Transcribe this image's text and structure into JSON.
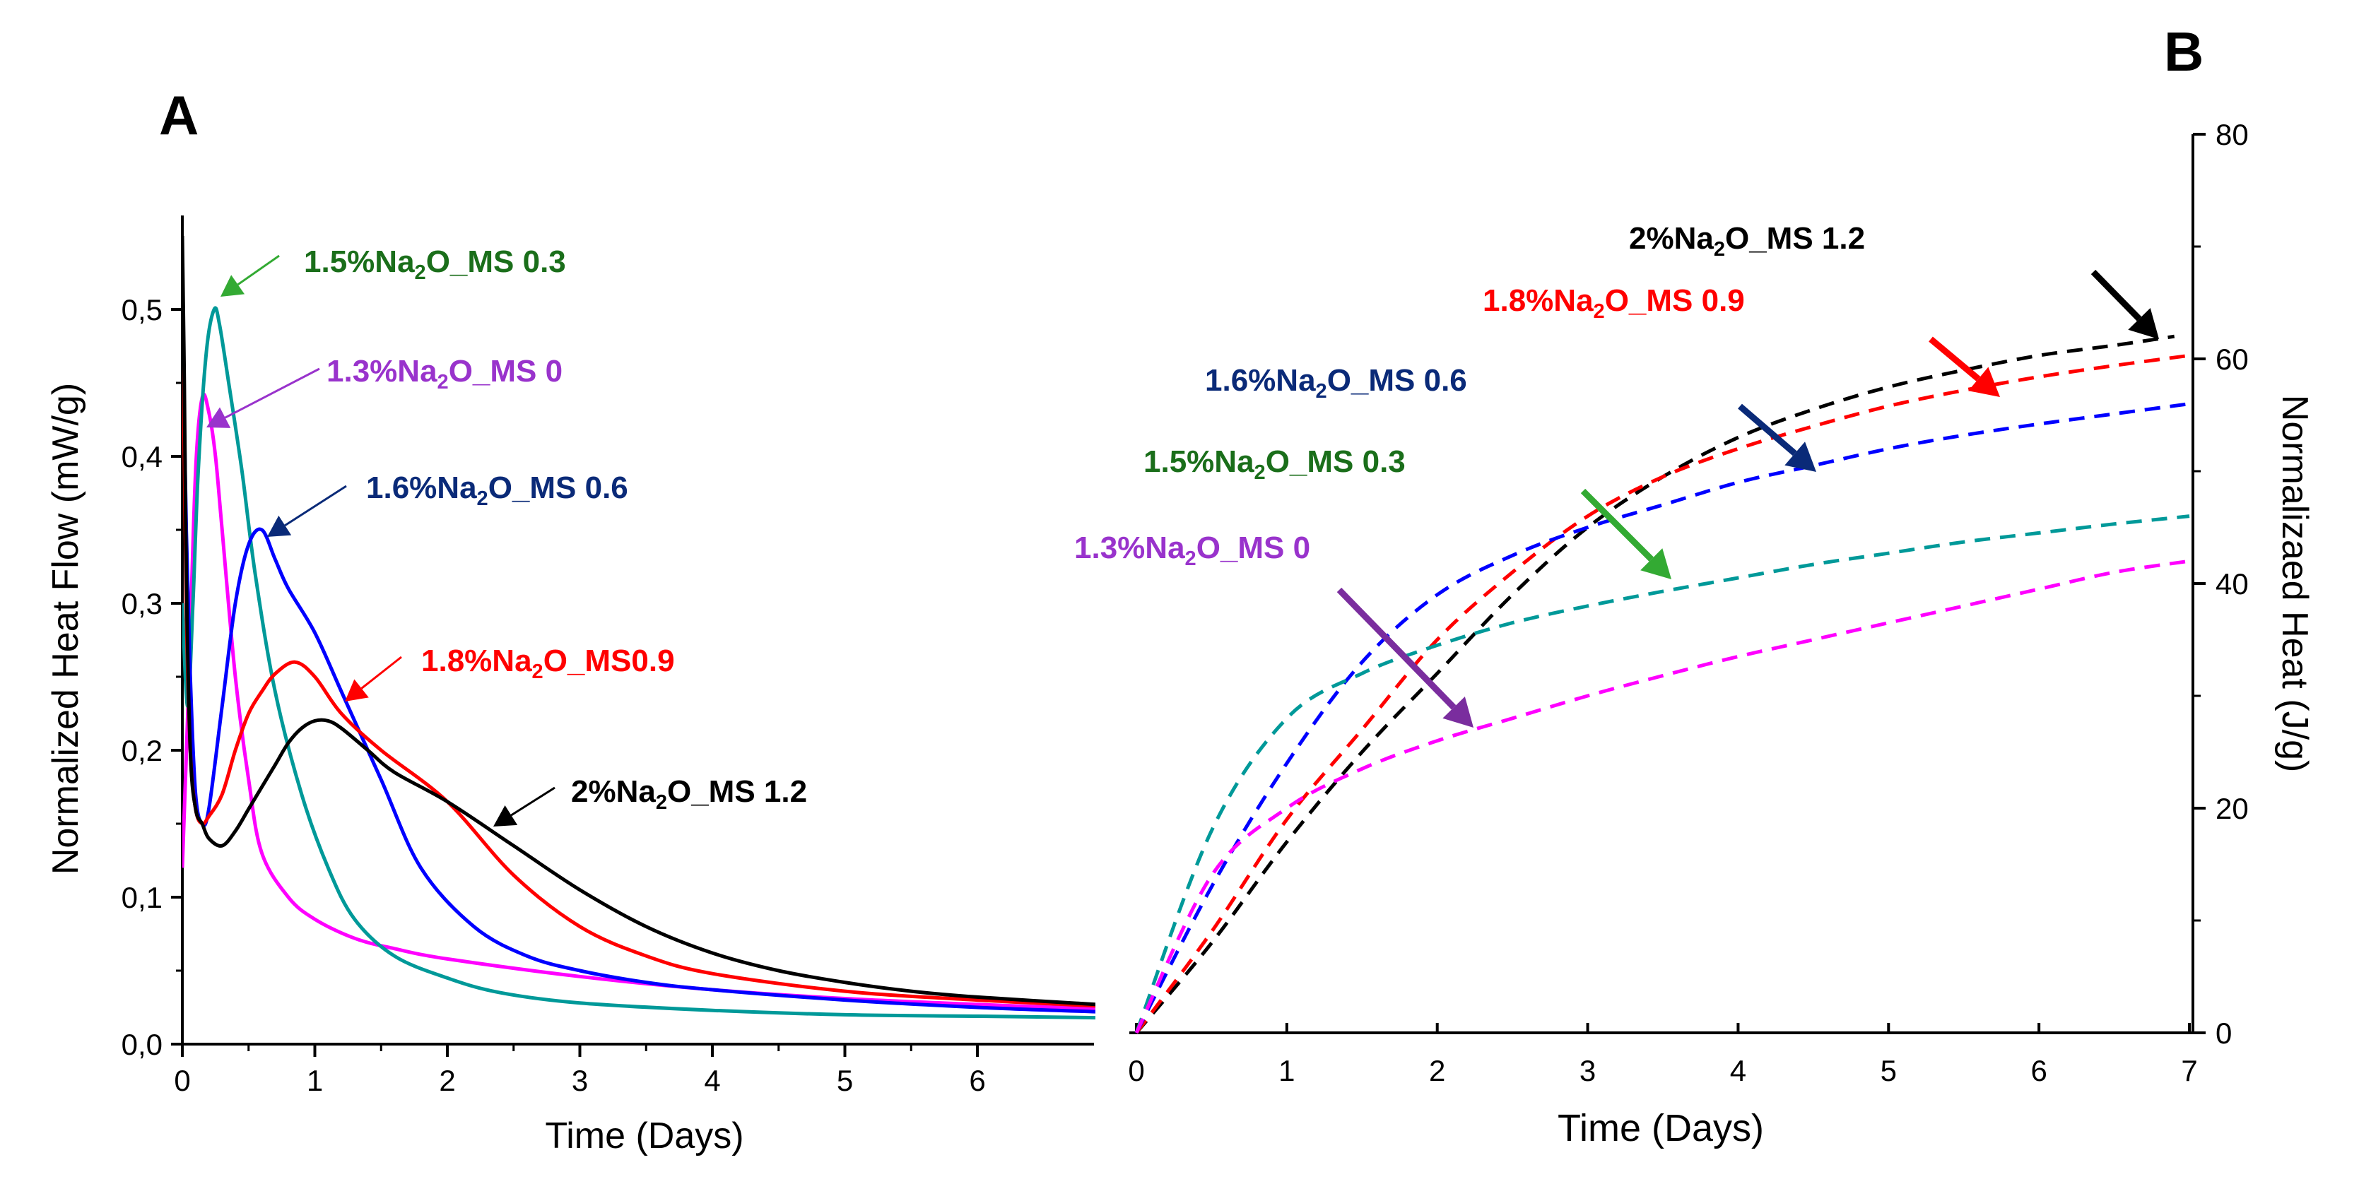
{
  "panel_labels": {
    "a": "A",
    "b": "B"
  },
  "chart_data": [
    {
      "type": "line",
      "panel": "A",
      "xlabel": "Time (Days)",
      "ylabel": "Normalized Heat Flow (mW/g)",
      "xlim": [
        0,
        6.9
      ],
      "ylim": [
        0,
        0.55
      ],
      "xticks": [
        0,
        1,
        2,
        3,
        4,
        5,
        6
      ],
      "yticks": [
        0.0,
        0.1,
        0.2,
        0.3,
        0.4,
        0.5
      ],
      "yticklabels": [
        "0,0",
        "0,1",
        "0,2",
        "0,3",
        "0,4",
        "0,5"
      ],
      "series": [
        {
          "name": "1.3%Na2O_MS 0",
          "color": "#ff00ff",
          "x": [
            0,
            0.05,
            0.1,
            0.15,
            0.2,
            0.25,
            0.3,
            0.4,
            0.5,
            0.6,
            0.8,
            1.0,
            1.3,
            1.6,
            2,
            3,
            4,
            5,
            6,
            6.9
          ],
          "y": [
            0.12,
            0.25,
            0.39,
            0.44,
            0.43,
            0.4,
            0.35,
            0.25,
            0.18,
            0.13,
            0.1,
            0.085,
            0.072,
            0.065,
            0.058,
            0.046,
            0.037,
            0.031,
            0.027,
            0.024
          ]
        },
        {
          "name": "1.5%Na2O_MS 0.3",
          "color": "#009999",
          "x": [
            0,
            0.04,
            0.08,
            0.12,
            0.18,
            0.24,
            0.28,
            0.35,
            0.45,
            0.55,
            0.7,
            0.9,
            1.1,
            1.3,
            1.6,
            2,
            2.4,
            3,
            4,
            5,
            6,
            6.9
          ],
          "y": [
            0.3,
            0.23,
            0.3,
            0.39,
            0.47,
            0.5,
            0.49,
            0.45,
            0.39,
            0.32,
            0.24,
            0.17,
            0.12,
            0.085,
            0.06,
            0.045,
            0.035,
            0.028,
            0.023,
            0.02,
            0.019,
            0.018
          ]
        },
        {
          "name": "1.6%Na2O_MS 0.6",
          "color": "#0000ff",
          "x": [
            0,
            0.03,
            0.06,
            0.1,
            0.15,
            0.2,
            0.3,
            0.4,
            0.5,
            0.6,
            0.7,
            0.8,
            1.0,
            1.2,
            1.5,
            1.8,
            2.2,
            2.6,
            3,
            3.5,
            4,
            5,
            6,
            6.9
          ],
          "y": [
            0.5,
            0.35,
            0.25,
            0.17,
            0.15,
            0.16,
            0.23,
            0.3,
            0.34,
            0.35,
            0.33,
            0.31,
            0.28,
            0.24,
            0.18,
            0.12,
            0.08,
            0.06,
            0.05,
            0.042,
            0.037,
            0.03,
            0.025,
            0.022
          ]
        },
        {
          "name": "1.8%Na2O_MS0.9",
          "color": "#ff0000",
          "x": [
            0,
            0.03,
            0.06,
            0.1,
            0.15,
            0.2,
            0.3,
            0.4,
            0.5,
            0.6,
            0.7,
            0.85,
            1.0,
            1.2,
            1.5,
            2.0,
            2.5,
            3.0,
            3.5,
            4,
            5,
            6,
            6.9
          ],
          "y": [
            0.52,
            0.3,
            0.2,
            0.16,
            0.15,
            0.155,
            0.17,
            0.2,
            0.225,
            0.24,
            0.252,
            0.26,
            0.25,
            0.225,
            0.2,
            0.165,
            0.115,
            0.08,
            0.06,
            0.048,
            0.036,
            0.03,
            0.026
          ]
        },
        {
          "name": "2%Na2O_MS 1.2",
          "color": "#000000",
          "x": [
            0,
            0.015,
            0.03,
            0.06,
            0.1,
            0.15,
            0.2,
            0.3,
            0.4,
            0.5,
            0.6,
            0.7,
            0.8,
            0.9,
            1.0,
            1.1,
            1.2,
            1.4,
            1.6,
            2.0,
            2.5,
            3.0,
            3.5,
            4,
            4.5,
            5,
            5.5,
            6,
            6.9
          ],
          "y": [
            0.55,
            0.45,
            0.32,
            0.2,
            0.16,
            0.15,
            0.14,
            0.135,
            0.145,
            0.16,
            0.175,
            0.19,
            0.205,
            0.215,
            0.22,
            0.22,
            0.215,
            0.2,
            0.185,
            0.165,
            0.135,
            0.105,
            0.08,
            0.062,
            0.05,
            0.042,
            0.036,
            0.032,
            0.027
          ]
        }
      ],
      "annotations": [
        {
          "text_pre": "1.5%Na",
          "sub": "2",
          "text_post": "O_MS  0.3",
          "color": "#1a6e1a",
          "arrow_color": "#33aa33"
        },
        {
          "text_pre": "1.3%Na",
          "sub": "2",
          "text_post": "O_MS  0",
          "color": "#9933cc",
          "arrow_color": "#9933cc"
        },
        {
          "text_pre": "1.6%Na",
          "sub": "2",
          "text_post": "O_MS  0.6",
          "color": "#0a2a78",
          "arrow_color": "#0a2a78"
        },
        {
          "text_pre": "1.8%Na",
          "sub": "2",
          "text_post": "O_MS0.9",
          "color": "#ff0000",
          "arrow_color": "#ff0000"
        },
        {
          "text_pre": "2%Na",
          "sub": "2",
          "text_post": "O_MS  1.2",
          "color": "#000000",
          "arrow_color": "#000000"
        }
      ]
    },
    {
      "type": "line",
      "panel": "B",
      "xlabel": "Time (Days)",
      "ylabel": "Normalizaed Heat (J/g)",
      "xlim": [
        0,
        7
      ],
      "ylim": [
        0,
        80
      ],
      "xticks": [
        0,
        1,
        2,
        3,
        4,
        5,
        6,
        7
      ],
      "yticks": [
        0,
        20,
        40,
        60,
        80
      ],
      "line_style": "dashed",
      "series": [
        {
          "name": "2%Na2O_MS 1.2",
          "color": "#000000",
          "x": [
            0,
            0.5,
            1,
            1.5,
            2,
            2.5,
            3,
            3.5,
            4,
            4.5,
            5,
            5.5,
            6,
            6.5,
            6.9
          ],
          "y": [
            0,
            8,
            17,
            25,
            32,
            39,
            45,
            49.5,
            53,
            55.5,
            57.5,
            59,
            60.3,
            61.2,
            62
          ]
        },
        {
          "name": "1.8%Na2O_MS 0.9",
          "color": "#ff0000",
          "x": [
            0,
            0.5,
            1,
            1.5,
            2,
            2.5,
            3,
            3.5,
            4,
            4.5,
            5,
            5.5,
            6,
            6.5,
            7
          ],
          "y": [
            0,
            9,
            19,
            27,
            35,
            41,
            46,
            49.5,
            52,
            54,
            55.8,
            57.2,
            58.4,
            59.4,
            60.3
          ]
        },
        {
          "name": "1.6%Na2O_MS 0.6",
          "color": "#0000ff",
          "x": [
            0,
            0.5,
            1,
            1.5,
            2,
            2.5,
            3,
            3.5,
            4,
            4.5,
            5,
            5.5,
            6,
            6.5,
            7
          ],
          "y": [
            0,
            13,
            24,
            33,
            39,
            42.5,
            45,
            47,
            49,
            50.5,
            52,
            53.2,
            54.2,
            55.1,
            56
          ]
        },
        {
          "name": "1.5%Na2O_MS 0.3",
          "color": "#009999",
          "x": [
            0,
            0.5,
            1,
            1.5,
            2,
            2.5,
            3,
            3.5,
            4,
            4.5,
            5,
            5.5,
            6,
            6.5,
            7
          ],
          "y": [
            0,
            18,
            28,
            32,
            34.5,
            36.5,
            38,
            39.3,
            40.5,
            41.7,
            42.7,
            43.7,
            44.5,
            45.3,
            46
          ]
        },
        {
          "name": "1.3%Na2O_MS 0",
          "color": "#ff00ff",
          "x": [
            0,
            0.5,
            1,
            1.5,
            2,
            2.5,
            3,
            3.5,
            4,
            4.5,
            5,
            5.5,
            6,
            6.5,
            7
          ],
          "y": [
            0,
            14,
            20,
            23.5,
            26,
            28,
            30,
            31.8,
            33.5,
            35,
            36.5,
            38,
            39.5,
            41,
            42
          ]
        }
      ],
      "annotations": [
        {
          "text_pre": "2%Na",
          "sub": "2",
          "text_post": "O_MS  1.2",
          "color": "#000000",
          "arrow_color": "#000000"
        },
        {
          "text_pre": "1.8%Na",
          "sub": "2",
          "text_post": "O_MS  0.9",
          "color": "#ff0000",
          "arrow_color": "#ff0000"
        },
        {
          "text_pre": "1.6%Na",
          "sub": "2",
          "text_post": "O_MS  0.6",
          "color": "#0a2a78",
          "arrow_color": "#0a2a78"
        },
        {
          "text_pre": "1.5%Na",
          "sub": "2",
          "text_post": "O_MS  0.3",
          "color": "#1a6e1a",
          "arrow_color": "#33aa33"
        },
        {
          "text_pre": "1.3%Na",
          "sub": "2",
          "text_post": "O_MS  0",
          "color": "#9933cc",
          "arrow_color": "#7a2d9e"
        }
      ]
    }
  ]
}
